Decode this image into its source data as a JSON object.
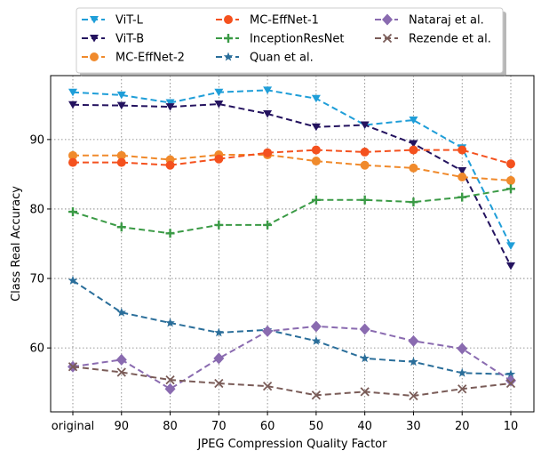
{
  "chart_data": {
    "type": "line",
    "title": "",
    "xlabel": "JPEG Compression Quality Factor",
    "ylabel": "Class Real Accuracy",
    "categories": [
      "original",
      "90",
      "80",
      "70",
      "60",
      "50",
      "40",
      "30",
      "20",
      "10"
    ],
    "yticks": [
      60,
      70,
      80,
      90
    ],
    "ylim": [
      50.8,
      99.2
    ],
    "grid": true,
    "grid_style": "dotted",
    "legend_position": "top-center-outside",
    "legend_columns": 3,
    "series": [
      {
        "name": "ViT-L",
        "color": "#1f9ed8",
        "marker": "triangle-down",
        "values": [
          96.8,
          96.4,
          95.3,
          96.8,
          97.1,
          95.9,
          92.1,
          92.8,
          88.8,
          74.7
        ]
      },
      {
        "name": "ViT-B",
        "color": "#24135f",
        "marker": "triangle-down",
        "values": [
          95.0,
          94.9,
          94.7,
          95.1,
          93.7,
          91.8,
          92.1,
          89.4,
          85.5,
          71.8
        ]
      },
      {
        "name": "MC-EffNet-2",
        "color": "#f08a2c",
        "marker": "circle",
        "values": [
          87.7,
          87.7,
          87.1,
          87.8,
          87.8,
          86.9,
          86.3,
          85.9,
          84.6,
          84.1
        ]
      },
      {
        "name": "MC-EffNet-1",
        "color": "#f4511e",
        "marker": "circle",
        "values": [
          86.7,
          86.7,
          86.3,
          87.2,
          88.1,
          88.5,
          88.2,
          88.5,
          88.5,
          86.5
        ]
      },
      {
        "name": "InceptionResNet",
        "color": "#3a9a45",
        "marker": "plus",
        "values": [
          79.6,
          77.4,
          76.5,
          77.7,
          77.7,
          81.3,
          81.3,
          81.0,
          81.7,
          82.9
        ]
      },
      {
        "name": "Quan et al.",
        "color": "#2a6e9a",
        "marker": "star",
        "values": [
          69.7,
          65.1,
          63.6,
          62.2,
          62.6,
          61.0,
          58.5,
          58.0,
          56.4,
          56.2
        ]
      },
      {
        "name": "Nataraj et al.",
        "color": "#8a6bb0",
        "marker": "diamond",
        "values": [
          57.3,
          58.3,
          54.1,
          58.5,
          62.4,
          63.1,
          62.7,
          61.0,
          59.9,
          55.3
        ]
      },
      {
        "name": "Rezende et al.",
        "color": "#7a5c58",
        "marker": "x",
        "values": [
          57.3,
          56.5,
          55.4,
          54.9,
          54.5,
          53.2,
          53.7,
          53.1,
          54.1,
          54.9
        ]
      }
    ]
  }
}
